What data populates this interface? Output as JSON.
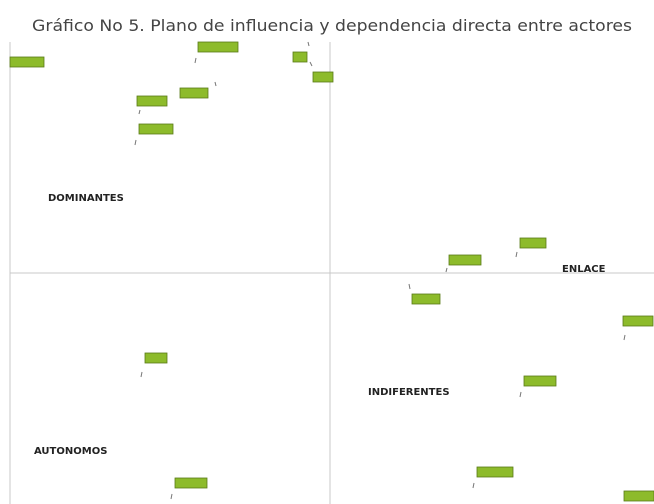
{
  "title": "Gráfico No 5. Plano de influencia y dependencia directa entre actores",
  "quadrants": {
    "top_left": "DOMINANTES",
    "top_right": "ENLACE",
    "bottom_right": "INDIFERENTES",
    "bottom_left": "AUTONOMOS"
  }
}
